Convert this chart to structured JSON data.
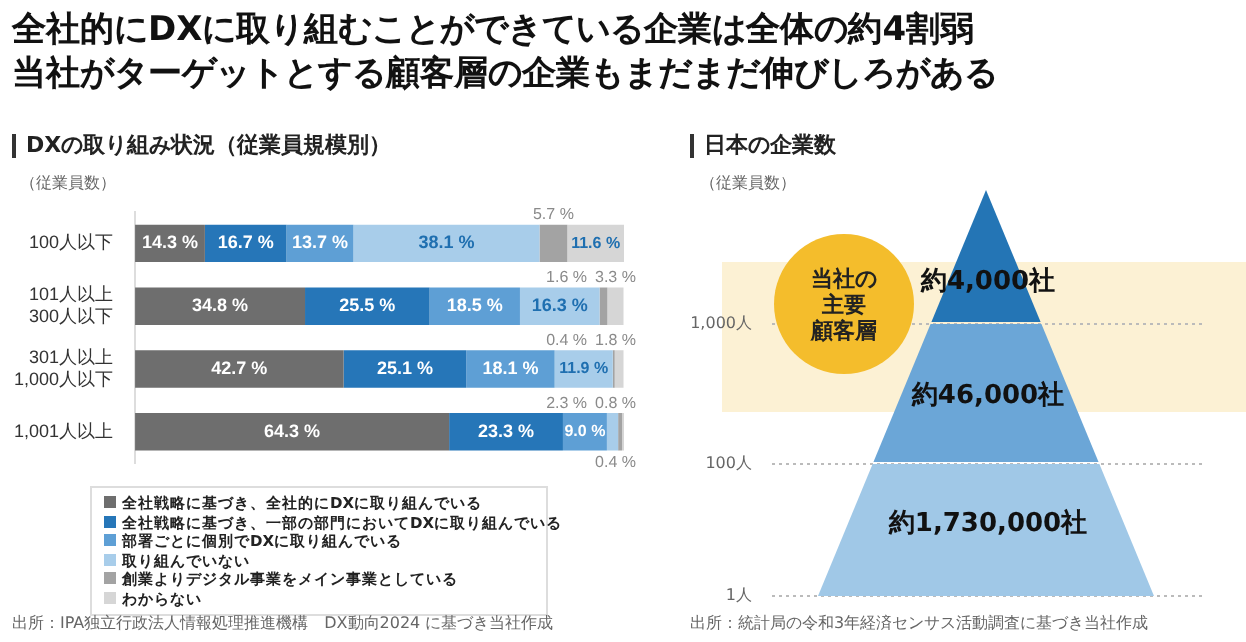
{
  "chart_data": [
    {
      "type": "bar",
      "orientation": "horizontal",
      "stacked": true,
      "title": "DXの取り組み状況（従業員規模別）",
      "ylabel": "（従業員数）",
      "categories": [
        "100人以下",
        "101人以上\n300人以下",
        "301人以上\n1,000人以下",
        "1,001人以上"
      ],
      "xlim": [
        0,
        100.1
      ],
      "tick_labels": "y",
      "legend": "bottom",
      "series": [
        {
          "name": "全社戦略に基づき、全社的にDXに取り組んでいる",
          "color": "#6e6e6e",
          "values": [
            14.3,
            34.8,
            42.7,
            64.3
          ],
          "value_labels": [
            "14.3 %",
            "34.8 %",
            "42.7 %",
            "64.3 %"
          ]
        },
        {
          "name": "全社戦略に基づき、一部の部門においてDXに取り組んでいる",
          "color": "#2676b8",
          "values": [
            16.7,
            25.5,
            25.1,
            23.3
          ],
          "value_labels": [
            "16.7 %",
            "25.5 %",
            "25.1 %",
            "23.3 %"
          ]
        },
        {
          "name": "部署ごとに個別でDXに取り組んでいる",
          "color": "#5e9fd5",
          "values": [
            13.7,
            18.5,
            18.1,
            9.0
          ],
          "value_labels": [
            "13.7 %",
            "18.5 %",
            "18.1 %",
            "9.0 %"
          ]
        },
        {
          "name": "取り組んでいない",
          "color": "#a8cdea",
          "values": [
            38.1,
            16.3,
            11.9,
            2.3
          ],
          "value_labels": [
            "38.1 %",
            "16.3 %",
            "11.9 %",
            "2.3 %"
          ]
        },
        {
          "name": "創業よりデジタル事業をメイン事業としている",
          "color": "#a3a3a3",
          "values": [
            5.7,
            1.6,
            0.4,
            0.8
          ],
          "value_labels": [
            "5.7 %",
            "1.6 %",
            "0.4 %",
            "0.8 %"
          ]
        },
        {
          "name": "わからない",
          "color": "#d6d6d6",
          "values": [
            11.6,
            3.3,
            1.8,
            0.4
          ],
          "value_labels": [
            "11.6 %",
            "3.3 %",
            "1.8 %",
            "0.4 %"
          ]
        }
      ],
      "annotations": [
        "全社的にDXに取り組むことができている企業は全体の約4割弱",
        "当社がターゲットとする顧客層の企業もまだまだ伸びしろがある",
        "出所：IPA独立行政法人情報処理推進機構　DX動向2024 に基づき当社作成"
      ]
    },
    {
      "type": "other",
      "title": "日本の企業数",
      "ylabel": "（従業員数）",
      "categories": [
        "約4,000社",
        "約46,000社",
        "約1,730,000社"
      ],
      "colors": [
        "#2475b5",
        "#6ba6d7",
        "#a0c8e7"
      ],
      "annotations": [
        "1,000人",
        "100人",
        "1人",
        "当社の",
        "主要",
        "顧客層",
        "出所：統計局の令和3年経済センサス活動調査に基づき当社作成"
      ]
    }
  ]
}
